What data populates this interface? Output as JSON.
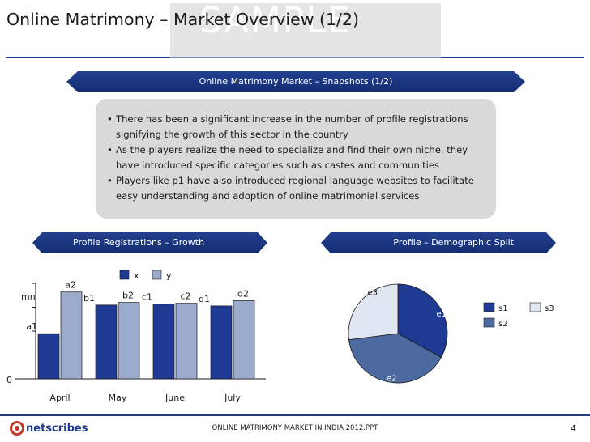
{
  "header": {
    "title": "Online Matrimony – Market Overview (1/2)",
    "watermark": "SAMPLE"
  },
  "snapshot": {
    "ribbon_label": "Online Matrimony Market – Snapshots (1/2)",
    "bullets": [
      "There has been a significant increase in the number of profile registrations signifying the growth of this sector in the country",
      "As the players realize the need to specialize and find their own niche, they have introduced specific categories such as castes and communities",
      "Players like p1 have also introduced regional language websites to facilitate easy understanding and adoption of online matrimonial services"
    ]
  },
  "left_section": {
    "ribbon_label": "Profile Registrations – Growth"
  },
  "right_section": {
    "ribbon_label": "Profile – Demographic Split"
  },
  "chart_data": [
    {
      "type": "bar",
      "categories": [
        "April",
        "May",
        "June",
        "July"
      ],
      "series": [
        {
          "name": "x",
          "color": "#1f3a93",
          "labels": [
            "a1",
            "b1",
            "c1",
            "d1"
          ],
          "values": [
            0.52,
            0.85,
            0.86,
            0.84
          ]
        },
        {
          "name": "y",
          "color": "#9aabcc",
          "labels": [
            "a2",
            "b2",
            "c2",
            "d2"
          ],
          "values": [
            1.0,
            0.88,
            0.87,
            0.9
          ]
        }
      ],
      "ylabel": "mn",
      "y_tick_labels": [
        "0"
      ],
      "ylim": [
        0,
        1.1
      ],
      "legend": "top"
    },
    {
      "type": "pie",
      "slices": [
        {
          "label": "e1",
          "legend": "s1",
          "value": 33,
          "color": "#1f3a93"
        },
        {
          "label": "e2",
          "legend": "s2",
          "value": 40,
          "color": "#4c6aa0"
        },
        {
          "label": "e3",
          "legend": "s3",
          "value": 27,
          "color": "#e0e6f2"
        }
      ],
      "legend": "right"
    }
  ],
  "footer": {
    "logo_text": "netscribes",
    "doc_name": "ONLINE MATRIMONY MARKET IN INDIA 2012.PPT",
    "page": "4"
  }
}
